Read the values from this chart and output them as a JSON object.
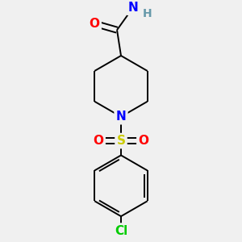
{
  "background_color": "#f0f0f0",
  "bond_color": "#000000",
  "atom_colors": {
    "O": "#ff0000",
    "N": "#0000ff",
    "S": "#cccc00",
    "Cl": "#00cc00",
    "H": "#6699aa"
  },
  "figsize": [
    3.0,
    3.0
  ],
  "dpi": 100
}
